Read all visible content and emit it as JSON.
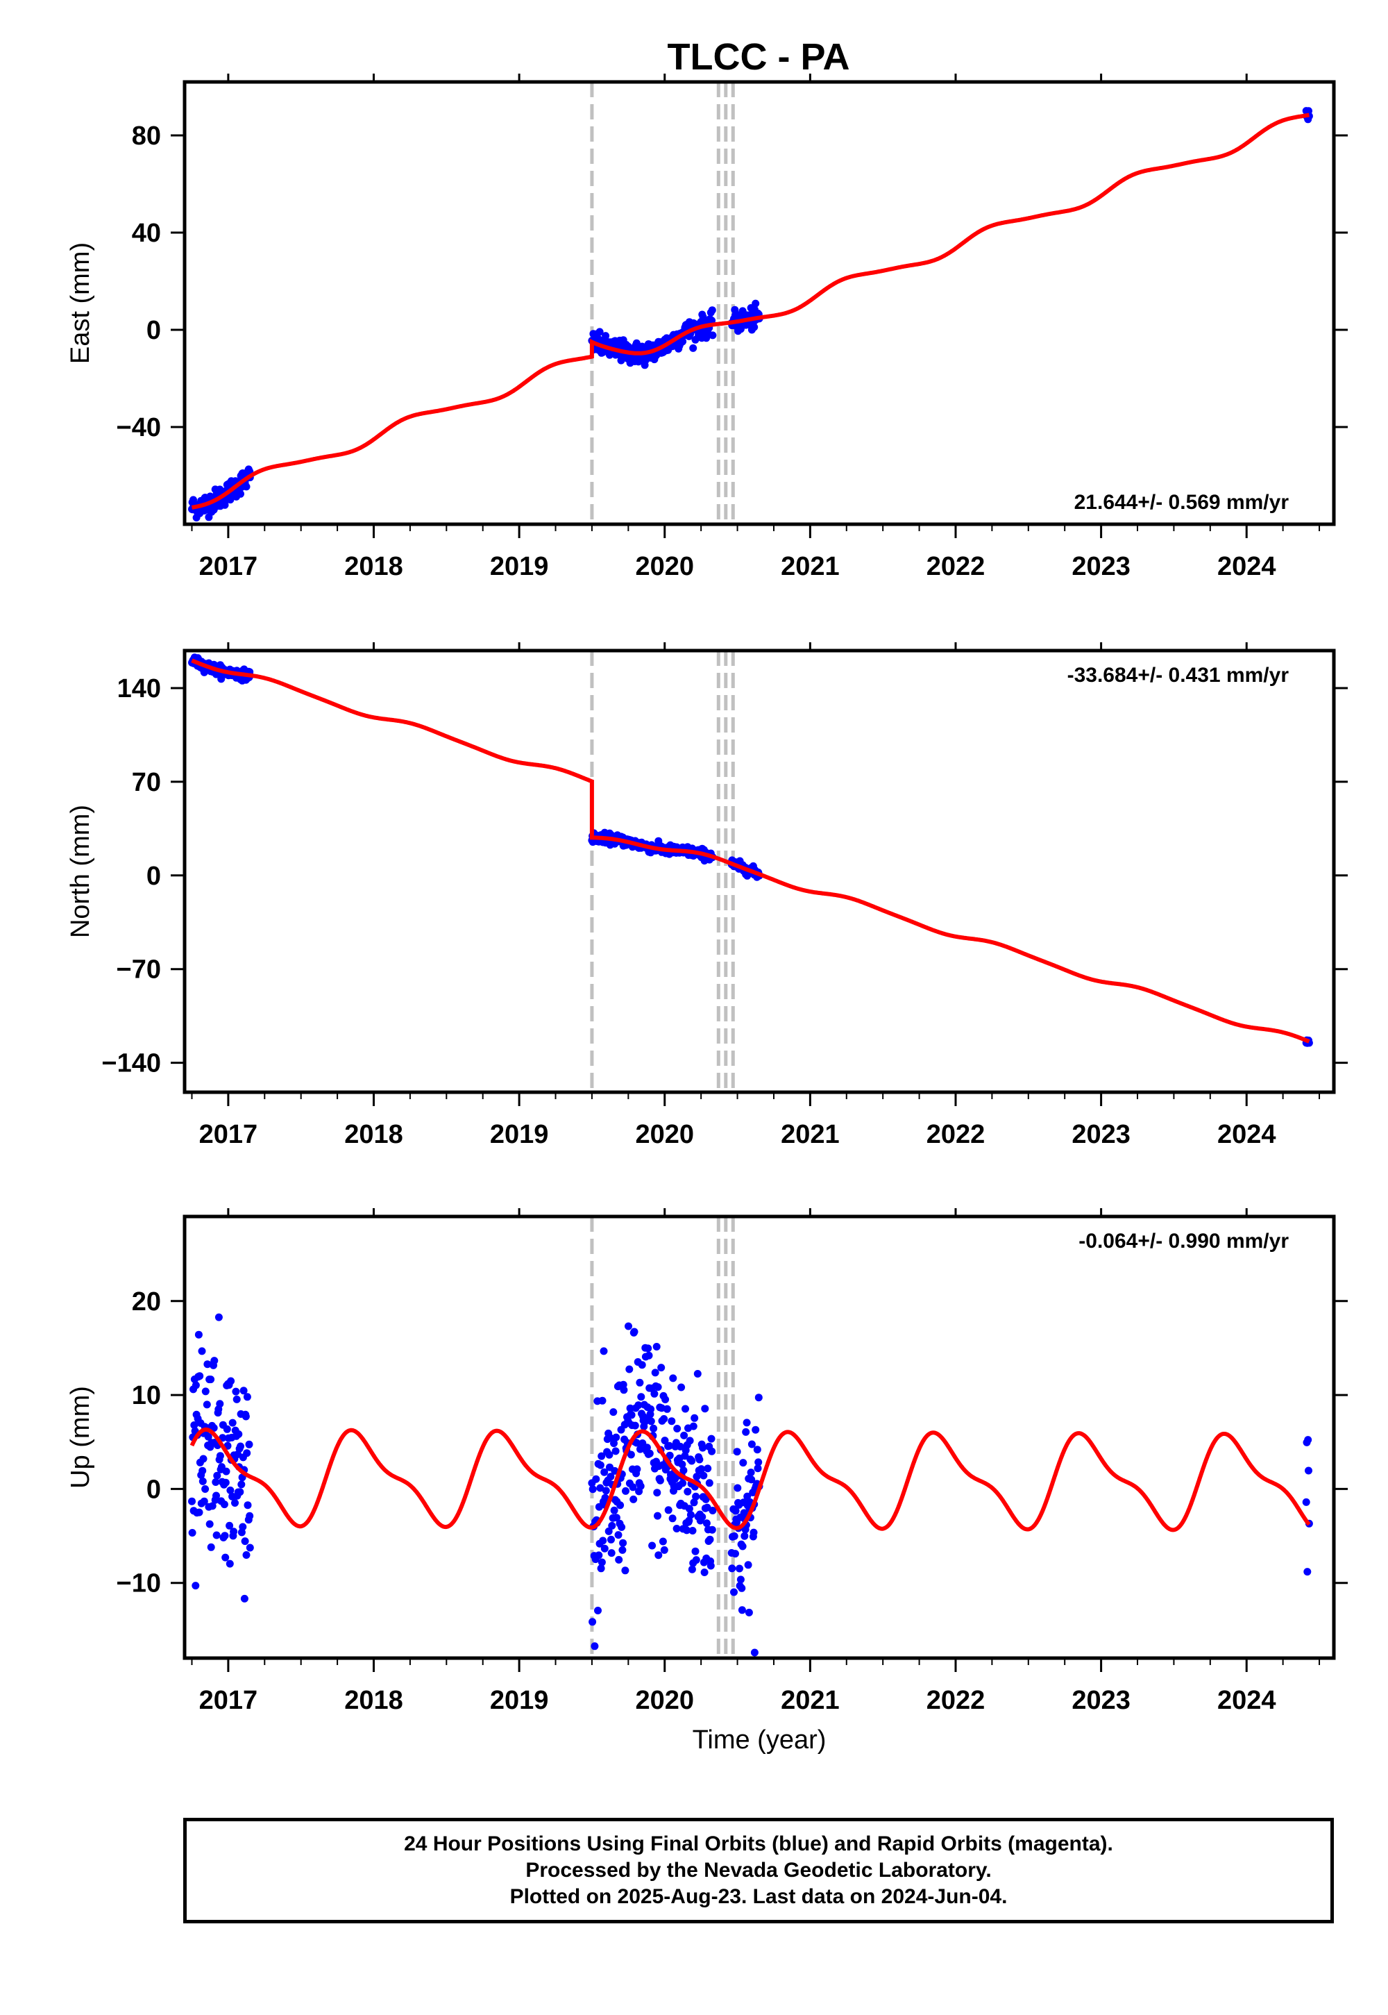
{
  "figure": {
    "title": "TLCC - PA"
  },
  "colors": {
    "final_orbits": "#0000ff",
    "model": "#ff0000",
    "event_lines": "#c0c0c0",
    "frame": "#000000"
  },
  "footer": {
    "lines": [
      "24 Hour Positions Using Final Orbits (blue) and Rapid Orbits (magenta).",
      "Processed by the Nevada Geodetic Laboratory.",
      "Plotted on 2025-Aug-23. Last data on 2024-Jun-04."
    ]
  },
  "chart_data": [
    {
      "type": "scatter",
      "id": "east",
      "ylabel": "East (mm)",
      "xlabel": "",
      "xlim": [
        2016.7,
        2024.6
      ],
      "ylim": [
        -80,
        102
      ],
      "xticks": [
        2017,
        2018,
        2019,
        2020,
        2021,
        2022,
        2023,
        2024
      ],
      "yticks": [
        -40,
        0,
        40,
        80
      ],
      "rate_text": "21.644+/- 0.569 mm/yr",
      "rate_position": "bottom-right",
      "event_lines": [
        2019.5,
        2020.37,
        2020.42,
        2020.47
      ],
      "data_segments": [
        [
          2016.75,
          2017.15
        ],
        [
          2019.5,
          2020.33
        ],
        [
          2020.46,
          2020.65
        ],
        [
          2024.41,
          2024.43
        ]
      ],
      "model": {
        "rate": 21.644,
        "intercept": -71,
        "ref_epoch": 2016.75,
        "steps": [
          {
            "t": 2019.5,
            "size": 6
          }
        ],
        "annual_amp": 2.6,
        "annual_phase": 0.05,
        "semiannual_amp": 0.6,
        "postseismic": {
          "t": 2019.5,
          "amp": -14,
          "tau": 0.35
        }
      },
      "scatter_noise": 2.2
    },
    {
      "type": "scatter",
      "id": "north",
      "ylabel": "North (mm)",
      "xlabel": "",
      "xlim": [
        2016.7,
        2024.6
      ],
      "ylim": [
        -162,
        168
      ],
      "xticks": [
        2017,
        2018,
        2019,
        2020,
        2021,
        2022,
        2023,
        2024
      ],
      "yticks": [
        -140,
        -70,
        0,
        70,
        140
      ],
      "rate_text": "-33.684+/- 0.431 mm/yr",
      "rate_position": "top-right",
      "event_lines": [
        2019.5,
        2020.37,
        2020.42,
        2020.47
      ],
      "data_segments": [
        [
          2016.75,
          2017.15
        ],
        [
          2019.5,
          2020.33
        ],
        [
          2020.46,
          2020.65
        ],
        [
          2024.41,
          2024.43
        ]
      ],
      "model": {
        "rate": -33.684,
        "intercept": 162,
        "ref_epoch": 2016.75,
        "steps": [
          {
            "t": 2019.5,
            "size": -42
          }
        ],
        "annual_amp": 2.3,
        "annual_phase": 0.1,
        "semiannual_amp": 0.5,
        "postseismic": {
          "t": 2019.5,
          "amp": 13,
          "tau": 0.3
        }
      },
      "scatter_noise": 1.8
    },
    {
      "type": "scatter",
      "id": "up",
      "ylabel": "Up (mm)",
      "xlabel": "Time (year)",
      "xlim": [
        2016.7,
        2024.6
      ],
      "ylim": [
        -18,
        29
      ],
      "xticks": [
        2017,
        2018,
        2019,
        2020,
        2021,
        2022,
        2023,
        2024
      ],
      "yticks": [
        -10,
        0,
        10,
        20
      ],
      "rate_text": "-0.064+/- 0.990 mm/yr",
      "rate_position": "top-right",
      "event_lines": [
        2019.5,
        2020.37,
        2020.42,
        2020.47
      ],
      "data_segments": [
        [
          2016.75,
          2017.15
        ],
        [
          2019.5,
          2020.33
        ],
        [
          2020.46,
          2020.65
        ],
        [
          2024.41,
          2024.43
        ]
      ],
      "model": {
        "rate": -0.064,
        "intercept": 1.2,
        "ref_epoch": 2016.75,
        "steps": [],
        "annual_amp": 4.3,
        "annual_phase": 0.67,
        "semiannual_amp": 1.6,
        "postseismic": null
      },
      "scatter_noise": 5.5
    }
  ]
}
